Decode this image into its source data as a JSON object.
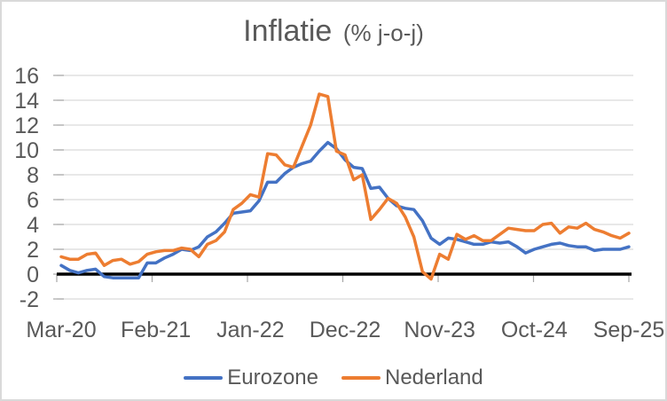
{
  "chart_data": {
    "type": "line",
    "title": "Inflatie",
    "subtitle": "(% j-o-j)",
    "x": [
      "Mar-20",
      "Apr-20",
      "May-20",
      "Jun-20",
      "Jul-20",
      "Aug-20",
      "Sep-20",
      "Oct-20",
      "Nov-20",
      "Dec-20",
      "Jan-21",
      "Feb-21",
      "Mar-21",
      "Apr-21",
      "May-21",
      "Jun-21",
      "Jul-21",
      "Aug-21",
      "Sep-21",
      "Oct-21",
      "Nov-21",
      "Dec-21",
      "Jan-22",
      "Feb-22",
      "Mar-22",
      "Apr-22",
      "May-22",
      "Jun-22",
      "Jul-22",
      "Aug-22",
      "Sep-22",
      "Oct-22",
      "Nov-22",
      "Dec-22",
      "Jan-23",
      "Feb-23",
      "Mar-23",
      "Apr-23",
      "May-23",
      "Jun-23",
      "Jul-23",
      "Aug-23",
      "Sep-23",
      "Oct-23",
      "Nov-23",
      "Dec-23",
      "Jan-24",
      "Feb-24",
      "Mar-24",
      "Apr-24",
      "May-24",
      "Jun-24",
      "Jul-24",
      "Aug-24",
      "Sep-24",
      "Oct-24",
      "Nov-24",
      "Dec-24",
      "Jan-25",
      "Feb-25",
      "Mar-25",
      "Apr-25",
      "May-25",
      "Jun-25",
      "Jul-25",
      "Aug-25",
      "Sep-25"
    ],
    "x_tick_labels": [
      "Mar-20",
      "Feb-21",
      "Jan-22",
      "Dec-22",
      "Nov-23",
      "Oct-24",
      "Sep-25"
    ],
    "x_tick_interval_months": 11,
    "y_ticks": [
      16,
      14,
      12,
      10,
      8,
      6,
      4,
      2,
      0,
      "-2"
    ],
    "ylim": [
      -2,
      16
    ],
    "grid": "horizontal",
    "legend_position": "bottom",
    "series": [
      {
        "name": "Eurozone",
        "color": "#4472C4",
        "values": [
          0.7,
          0.3,
          0.1,
          0.3,
          0.4,
          -0.2,
          -0.3,
          -0.3,
          -0.3,
          -0.3,
          0.9,
          0.9,
          1.3,
          1.6,
          2.0,
          1.9,
          2.2,
          3.0,
          3.4,
          4.1,
          4.9,
          5.0,
          5.1,
          5.9,
          7.4,
          7.4,
          8.1,
          8.6,
          8.9,
          9.1,
          9.9,
          10.6,
          10.1,
          9.2,
          8.6,
          8.5,
          6.9,
          7.0,
          6.1,
          5.5,
          5.3,
          5.2,
          4.3,
          2.9,
          2.4,
          2.9,
          2.8,
          2.6,
          2.4,
          2.4,
          2.6,
          2.5,
          2.6,
          2.2,
          1.7,
          2.0,
          2.2,
          2.4,
          2.5,
          2.3,
          2.2,
          2.2,
          1.9,
          2.0,
          2.0,
          2.0,
          2.2
        ]
      },
      {
        "name": "Nederland",
        "color": "#ED7D31",
        "values": [
          1.4,
          1.2,
          1.2,
          1.6,
          1.7,
          0.7,
          1.1,
          1.2,
          0.8,
          1.0,
          1.6,
          1.8,
          1.9,
          1.9,
          2.1,
          2.0,
          1.4,
          2.4,
          2.7,
          3.4,
          5.2,
          5.7,
          6.4,
          6.2,
          9.7,
          9.6,
          8.8,
          8.6,
          10.3,
          12.0,
          14.5,
          14.3,
          9.9,
          9.6,
          7.6,
          8.0,
          4.4,
          5.2,
          6.1,
          5.7,
          4.6,
          3.0,
          0.2,
          -0.4,
          1.6,
          1.2,
          3.2,
          2.8,
          3.1,
          2.7,
          2.7,
          3.2,
          3.7,
          3.6,
          3.5,
          3.5,
          4.0,
          4.1,
          3.3,
          3.8,
          3.7,
          4.1,
          3.6,
          3.4,
          3.1,
          2.9,
          3.3
        ]
      }
    ],
    "colors": {
      "gridline": "#D9D9D9",
      "zero_axis": "#000000",
      "tick": "#A6A6A6",
      "text": "#595959",
      "frame_border": "#D9D9D9"
    }
  }
}
